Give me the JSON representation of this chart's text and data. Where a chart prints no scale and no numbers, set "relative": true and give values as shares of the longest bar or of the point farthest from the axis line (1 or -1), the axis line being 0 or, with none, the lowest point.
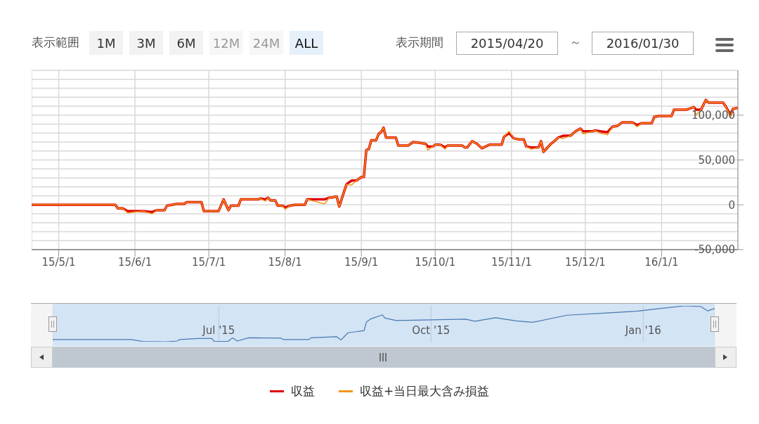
{
  "chart_data": [
    {
      "type": "line",
      "annotations": [
        "表示範囲",
        "1M",
        "3M",
        "6M",
        "12M",
        "24M",
        "ALL",
        "表示期間",
        "2015/04/20",
        "～",
        "2016/01/30"
      ],
      "x": [
        "2015-04-20",
        "2015-05-24",
        "2015-05-25",
        "2015-05-27",
        "2015-05-29",
        "2015-06-04",
        "2015-06-08",
        "2015-06-10",
        "2015-06-13",
        "2015-06-14",
        "2015-06-18",
        "2015-06-21",
        "2015-06-22",
        "2015-06-28",
        "2015-06-29",
        "2015-07-05",
        "2015-07-07",
        "2015-07-09",
        "2015-07-10",
        "2015-07-13",
        "2015-07-14",
        "2015-07-21",
        "2015-07-22",
        "2015-07-24",
        "2015-07-25",
        "2015-07-26",
        "2015-07-28",
        "2015-07-29",
        "2015-07-31",
        "2015-08-01",
        "2015-08-03",
        "2015-08-05",
        "2015-08-09",
        "2015-08-10",
        "2015-08-17",
        "2015-08-19",
        "2015-08-20",
        "2015-08-21",
        "2015-08-22",
        "2015-08-23",
        "2015-08-25",
        "2015-08-26",
        "2015-08-28",
        "2015-08-30",
        "2015-09-01",
        "2015-09-02",
        "2015-09-03",
        "2015-09-04",
        "2015-09-05",
        "2015-09-07",
        "2015-09-08",
        "2015-09-09",
        "2015-09-10",
        "2015-09-11",
        "2015-09-15",
        "2015-09-16",
        "2015-09-20",
        "2015-09-22",
        "2015-09-25",
        "2015-09-27",
        "2015-09-28",
        "2015-09-30",
        "2015-10-01",
        "2015-10-03",
        "2015-10-05",
        "2015-10-06",
        "2015-10-12",
        "2015-10-13",
        "2015-10-14",
        "2015-10-16",
        "2015-10-18",
        "2015-10-20",
        "2015-10-23",
        "2015-10-28",
        "2015-10-29",
        "2015-10-31",
        "2015-11-02",
        "2015-11-04",
        "2015-11-06",
        "2015-11-07",
        "2015-11-09",
        "2015-11-12",
        "2015-11-13",
        "2015-11-14",
        "2015-11-17",
        "2015-11-18",
        "2015-11-20",
        "2015-11-22",
        "2015-11-25",
        "2015-11-27",
        "2015-11-29",
        "2015-11-30",
        "2015-12-04",
        "2015-12-05",
        "2015-12-07",
        "2015-12-10",
        "2015-12-12",
        "2015-12-14",
        "2015-12-16",
        "2015-12-20",
        "2015-12-22",
        "2015-12-24",
        "2015-12-28",
        "2015-12-29",
        "2015-12-31",
        "2016-01-05",
        "2016-01-06",
        "2016-01-11",
        "2016-01-13",
        "2016-01-14",
        "2016-01-15",
        "2016-01-17",
        "2016-01-19",
        "2016-01-20",
        "2016-01-26",
        "2016-01-27",
        "2016-01-29",
        "2016-01-30",
        "2016-02-01"
      ],
      "series": [
        {
          "name": "収益",
          "color": "#e00000",
          "values": [
            0,
            0,
            -4000,
            -4000,
            -7000,
            -7000,
            -8000,
            -6000,
            -6000,
            -1000,
            1000,
            1000,
            3000,
            3000,
            -7000,
            -7000,
            6000,
            -6000,
            -1000,
            -1000,
            6000,
            6000,
            7000,
            6000,
            8000,
            5000,
            5000,
            -1000,
            -1000,
            -3000,
            -1000,
            0,
            0,
            6000,
            6000,
            8000,
            8000,
            9000,
            9000,
            -2000,
            15000,
            23000,
            27000,
            27000,
            31000,
            31000,
            61000,
            62000,
            72000,
            72000,
            79000,
            81000,
            86000,
            75000,
            75000,
            66000,
            66000,
            70000,
            69000,
            68000,
            65000,
            65000,
            67000,
            67000,
            64000,
            66000,
            66000,
            64000,
            64000,
            71000,
            68000,
            63000,
            67000,
            67000,
            76000,
            80000,
            74000,
            73000,
            73000,
            65000,
            64000,
            64000,
            71000,
            59000,
            68000,
            70000,
            75000,
            77000,
            77000,
            82000,
            85000,
            82000,
            82000,
            83000,
            82000,
            81000,
            87000,
            88000,
            92000,
            92000,
            89000,
            91000,
            91000,
            98000,
            99000,
            99000,
            106000,
            106000,
            108000,
            109000,
            106000,
            106000,
            117000,
            114000,
            114000,
            110000,
            100000,
            107000,
            108000
          ]
        },
        {
          "name": "収益+当日最大含み損益",
          "color": "#f0961e",
          "values": [
            0,
            0,
            -4000,
            -4000,
            -9000,
            -7000,
            -10000,
            -6000,
            -6000,
            -1000,
            1000,
            1000,
            3000,
            3000,
            -7000,
            -7000,
            6000,
            -6000,
            -1000,
            -1000,
            6000,
            6000,
            7000,
            4000,
            8000,
            5000,
            5000,
            -1000,
            -1000,
            -5000,
            -1000,
            0,
            0,
            6000,
            1000,
            8000,
            8000,
            9000,
            9000,
            -2000,
            15000,
            23000,
            22000,
            27000,
            31000,
            31000,
            61000,
            62000,
            72000,
            72000,
            79000,
            81000,
            86000,
            75000,
            75000,
            66000,
            66000,
            70000,
            69000,
            68000,
            61000,
            65000,
            67000,
            67000,
            62000,
            66000,
            66000,
            64000,
            64000,
            71000,
            68000,
            63000,
            67000,
            67000,
            76000,
            82000,
            74000,
            73000,
            73000,
            65000,
            62000,
            64000,
            71000,
            59000,
            68000,
            70000,
            75000,
            74000,
            77000,
            82000,
            85000,
            79000,
            82000,
            83000,
            80000,
            78000,
            87000,
            88000,
            92000,
            92000,
            87000,
            91000,
            91000,
            98000,
            99000,
            99000,
            106000,
            106000,
            108000,
            109000,
            100000,
            106000,
            117000,
            114000,
            114000,
            110000,
            98000,
            107000,
            108000
          ]
        }
      ],
      "xlim": [
        "2015-04-20",
        "2016-02-01"
      ],
      "xticks": [
        {
          "value": "2015-05-01",
          "label": "15/5/1"
        },
        {
          "value": "2015-06-01",
          "label": "15/6/1"
        },
        {
          "value": "2015-07-01",
          "label": "15/7/1"
        },
        {
          "value": "2015-08-01",
          "label": "15/8/1"
        },
        {
          "value": "2015-09-01",
          "label": "15/9/1"
        },
        {
          "value": "2015-10-01",
          "label": "15/10/1"
        },
        {
          "value": "2015-11-01",
          "label": "15/11/1"
        },
        {
          "value": "2015-12-01",
          "label": "15/12/1"
        },
        {
          "value": "2016-01-01",
          "label": "16/1/1"
        }
      ],
      "ylim": [
        -50000,
        150000
      ],
      "yticks": [
        {
          "value": -50000,
          "label": "-50,000"
        },
        {
          "value": -40000,
          "label": null
        },
        {
          "value": -30000,
          "label": null
        },
        {
          "value": -20000,
          "label": null
        },
        {
          "value": -10000,
          "label": null
        },
        {
          "value": 0,
          "label": "0"
        },
        {
          "value": 10000,
          "label": null
        },
        {
          "value": 20000,
          "label": null
        },
        {
          "value": 30000,
          "label": null
        },
        {
          "value": 40000,
          "label": null
        },
        {
          "value": 50000,
          "label": "50,000"
        },
        {
          "value": 60000,
          "label": null
        },
        {
          "value": 70000,
          "label": null
        },
        {
          "value": 80000,
          "label": null
        },
        {
          "value": 90000,
          "label": null
        },
        {
          "value": 100000,
          "label": "100,000"
        },
        {
          "value": 110000,
          "label": null
        },
        {
          "value": 120000,
          "label": null
        },
        {
          "value": 130000,
          "label": null
        },
        {
          "value": 140000,
          "label": null
        },
        {
          "value": 150000,
          "label": null
        }
      ],
      "grid": true,
      "legend": "bottom"
    },
    {
      "type": "line",
      "x": [
        "2015-04-20",
        "2015-05-24",
        "2015-05-29",
        "2015-06-08",
        "2015-06-13",
        "2015-06-14",
        "2015-06-22",
        "2015-06-28",
        "2015-06-29",
        "2015-07-05",
        "2015-07-07",
        "2015-07-09",
        "2015-07-14",
        "2015-07-28",
        "2015-07-29",
        "2015-08-09",
        "2015-08-10",
        "2015-08-21",
        "2015-08-23",
        "2015-08-26",
        "2015-09-02",
        "2015-09-03",
        "2015-09-05",
        "2015-09-10",
        "2015-09-11",
        "2015-09-16",
        "2015-10-16",
        "2015-10-20",
        "2015-10-29",
        "2015-11-07",
        "2015-11-14",
        "2015-11-29",
        "2015-12-16",
        "2015-12-29",
        "2016-01-06",
        "2016-01-19",
        "2016-01-26",
        "2016-01-29",
        "2016-02-01"
      ],
      "series": [
        {
          "color": "#4a78b0",
          "values": [
            0.06,
            0.06,
            0.01,
            0,
            0.02,
            0.06,
            0.09,
            0.09,
            0.01,
            0.01,
            0.11,
            0.02,
            0.11,
            0.1,
            0.06,
            0.06,
            0.11,
            0.14,
            0.05,
            0.25,
            0.31,
            0.55,
            0.64,
            0.75,
            0.66,
            0.59,
            0.63,
            0.57,
            0.67,
            0.58,
            0.54,
            0.74,
            0.8,
            0.85,
            0.91,
            1,
            0.98,
            0.86,
            0.93
          ]
        }
      ],
      "relative": true,
      "xlim": [
        "2015-04-20",
        "2016-02-01"
      ],
      "xticks": [
        {
          "value": "2015-07-01",
          "label": "Jul '15"
        },
        {
          "value": "2015-10-01",
          "label": "Oct '15"
        },
        {
          "value": "2016-01-01",
          "label": "Jan '16"
        }
      ],
      "tick_labels": "x",
      "grid": "x"
    }
  ]
}
